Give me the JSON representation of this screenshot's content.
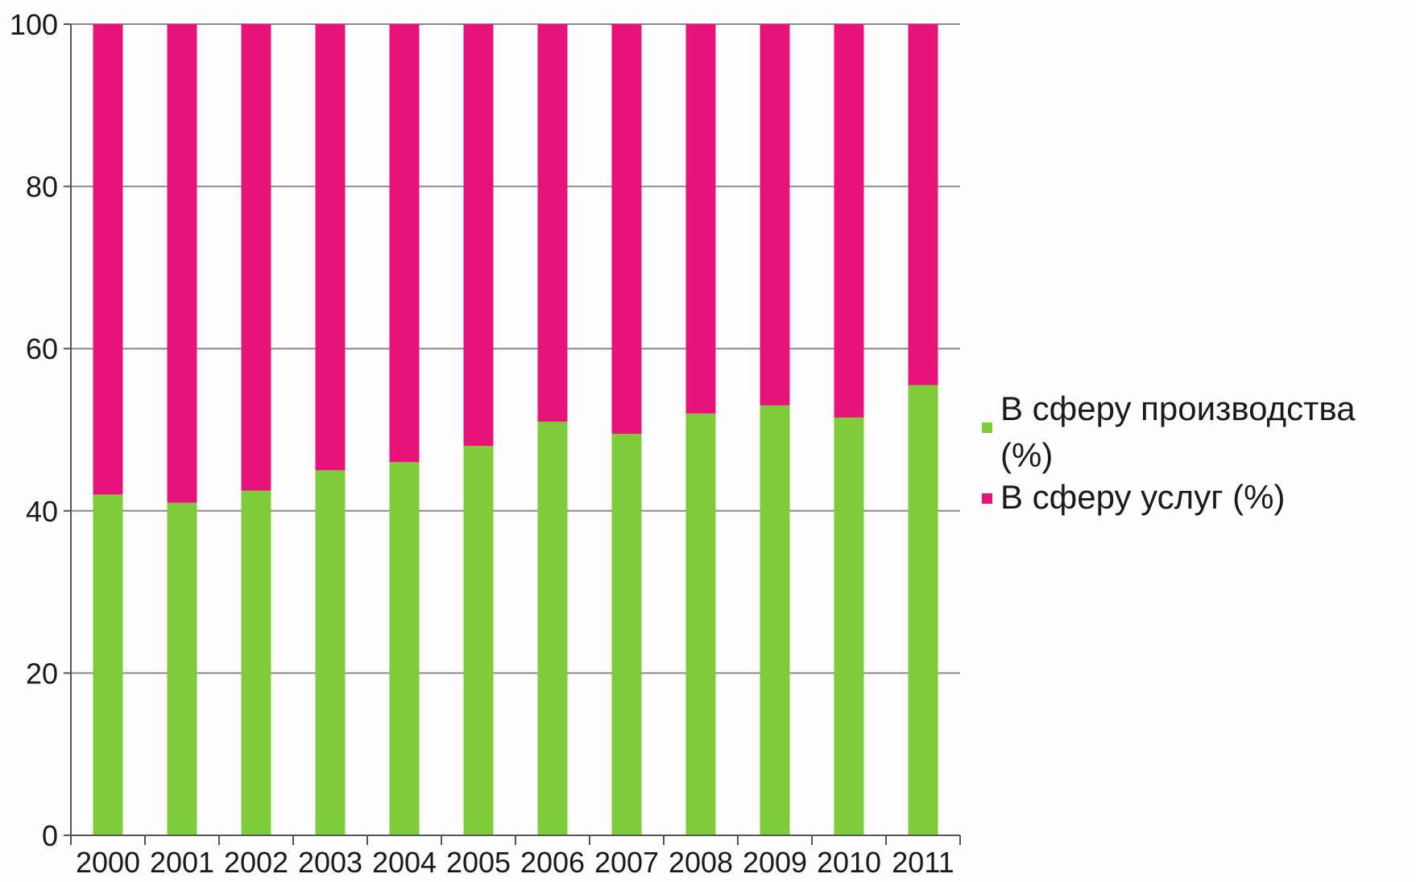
{
  "chart_data": {
    "type": "bar",
    "stacked": true,
    "title": "",
    "xlabel": "",
    "ylabel": "",
    "ylim": [
      0,
      100
    ],
    "yticks": [
      0,
      20,
      40,
      60,
      80,
      100
    ],
    "grid": true,
    "legend_position": "right",
    "categories": [
      "2000",
      "2001",
      "2002",
      "2003",
      "2004",
      "2005",
      "2006",
      "2007",
      "2008",
      "2009",
      "2010",
      "2011"
    ],
    "series": [
      {
        "name": "В сферу производства (%)",
        "color": "#7fcc3a",
        "values": [
          42,
          41,
          42.5,
          45,
          46,
          48,
          51,
          49.5,
          52,
          53,
          51.5,
          55.5
        ]
      },
      {
        "name": "В сферу услуг (%)",
        "color": "#e7137a",
        "values": [
          58,
          59,
          57.5,
          55,
          54,
          52,
          49,
          50.5,
          48,
          47,
          48.5,
          44.5
        ]
      }
    ],
    "legend": {
      "line1": "В сферу производства",
      "line2": "(%)",
      "item2": "В сферу услуг (%)"
    }
  }
}
